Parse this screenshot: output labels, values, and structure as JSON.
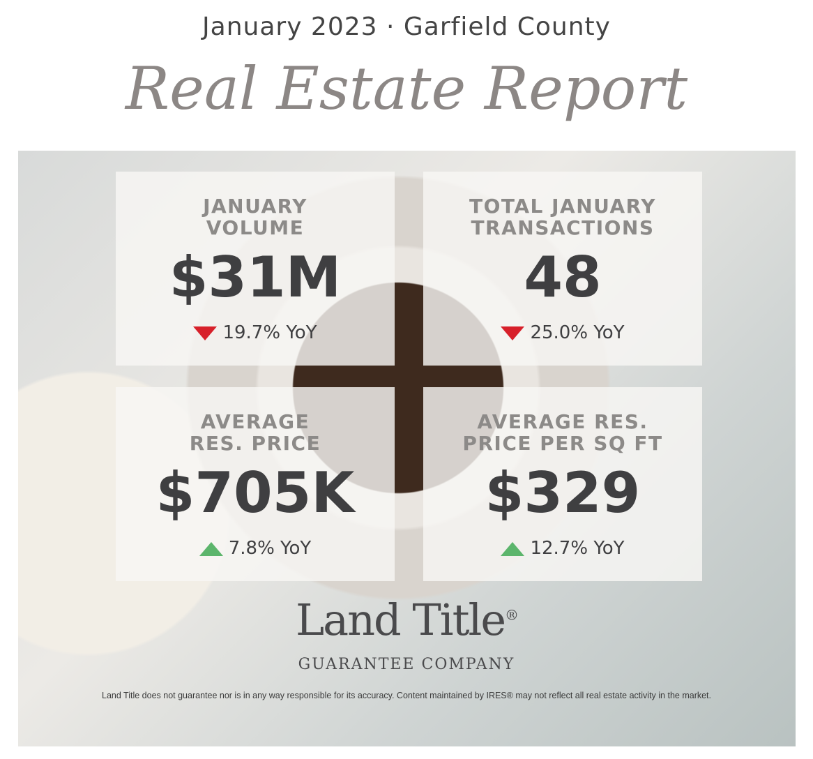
{
  "header": {
    "subtitle": "January 2023 · Garfield County",
    "title": "Real Estate Report"
  },
  "cards": [
    {
      "label_lines": [
        "JANUARY",
        "VOLUME"
      ],
      "value": "$31M",
      "change": "19.7% YoY",
      "direction": "down"
    },
    {
      "label_lines": [
        "TOTAL JANUARY",
        "TRANSACTIONS"
      ],
      "value": "48",
      "change": "25.0% YoY",
      "direction": "down"
    },
    {
      "label_lines": [
        "AVERAGE",
        "RES. PRICE"
      ],
      "value": "$705K",
      "change": "7.8% YoY",
      "direction": "up"
    },
    {
      "label_lines": [
        "AVERAGE RES.",
        "PRICE PER SQ FT"
      ],
      "value": "$329",
      "change": "12.7% YoY",
      "direction": "up"
    }
  ],
  "logo": {
    "name": "Land Title",
    "mark": "®",
    "tagline": "GUARANTEE COMPANY"
  },
  "disclaimer": "Land Title does not guarantee nor is in any way responsible for its accuracy. Content maintained by IRES® may not reflect all real estate activity in the market."
}
